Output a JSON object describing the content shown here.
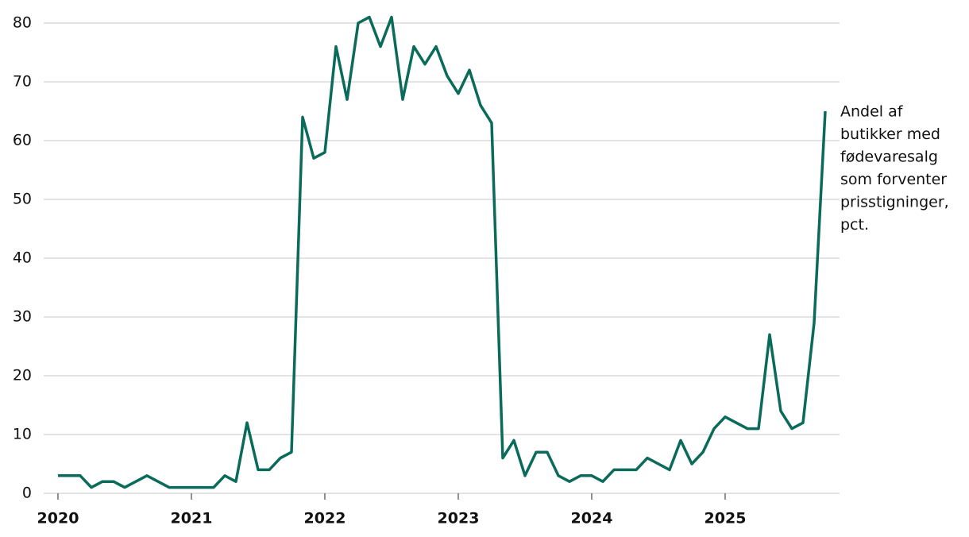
{
  "chart_data": {
    "type": "line",
    "annotation": [
      "Andel af",
      "butikker med",
      "fødevaresalg",
      "som forventer",
      "prisstigninger,",
      "pct."
    ],
    "categories": [
      "2020",
      null,
      null,
      null,
      null,
      null,
      null,
      null,
      null,
      null,
      null,
      null,
      "2021",
      null,
      null,
      null,
      null,
      null,
      null,
      null,
      null,
      null,
      null,
      null,
      "2022",
      null,
      null,
      null,
      null,
      null,
      null,
      null,
      null,
      null,
      null,
      null,
      "2023",
      null,
      null,
      null,
      null,
      null,
      null,
      null,
      null,
      null,
      null,
      null,
      "2024",
      null,
      null,
      null,
      null,
      null,
      null,
      null,
      null,
      null,
      null,
      null,
      "2025",
      null,
      null,
      null,
      null,
      null,
      null,
      null,
      null,
      null
    ],
    "series": [
      {
        "color": "#0b6b5a",
        "values": [
          3,
          3,
          3,
          1,
          2,
          2,
          1,
          2,
          3,
          2,
          1,
          1,
          1,
          1,
          1,
          3,
          2,
          12,
          4,
          4,
          6,
          7,
          64,
          57,
          58,
          76,
          67,
          80,
          81,
          76,
          81,
          67,
          76,
          73,
          76,
          71,
          68,
          72,
          66,
          63,
          6,
          9,
          3,
          7,
          7,
          3,
          2,
          3,
          3,
          2,
          4,
          4,
          4,
          6,
          5,
          4,
          9,
          5,
          7,
          11,
          13,
          12,
          11,
          11,
          27,
          14,
          11,
          12,
          29,
          65
        ]
      }
    ],
    "ylim": [
      0,
      80
    ],
    "yticks": [
      0,
      10,
      20,
      30,
      40,
      50,
      60,
      70,
      80
    ],
    "grid": true
  }
}
